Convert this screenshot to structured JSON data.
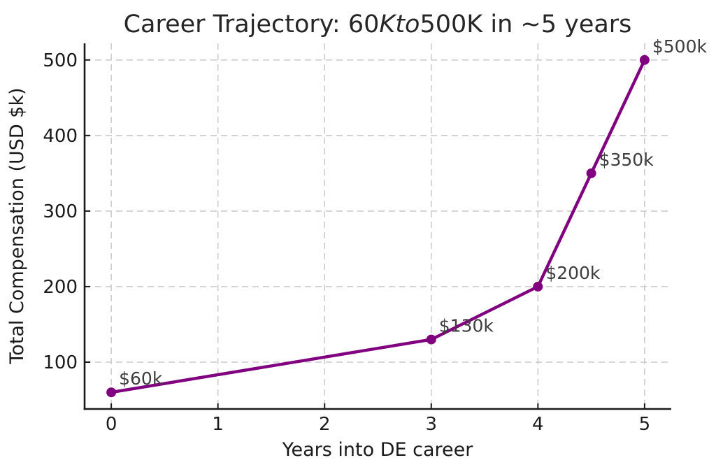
{
  "page": {
    "background": "#ffffff"
  },
  "chart_data": {
    "type": "line",
    "title": {
      "pre": "Career Trajectory: 60",
      "math_italic": "Kto",
      "post": "500K in ~5 years",
      "full_text": "Career Trajectory: 60Kto500K in ~5 years"
    },
    "xlabel": "Years into DE career",
    "ylabel": "Total Compensation (USD $k)",
    "points": [
      {
        "x": 0,
        "y": 60,
        "label": "$60k"
      },
      {
        "x": 3,
        "y": 130,
        "label": "$130k"
      },
      {
        "x": 4,
        "y": 200,
        "label": "$200k"
      },
      {
        "x": 4.5,
        "y": 350,
        "label": "$350k"
      },
      {
        "x": 5,
        "y": 500,
        "label": "$500k"
      }
    ],
    "xticks": [
      "0",
      "1",
      "2",
      "3",
      "4",
      "5"
    ],
    "yticks": [
      "100",
      "200",
      "300",
      "400",
      "500"
    ],
    "xtick_values": [
      0,
      1,
      2,
      3,
      4,
      5
    ],
    "ytick_values": [
      100,
      200,
      300,
      400,
      500
    ],
    "xlim": [
      -0.25,
      5.25
    ],
    "ylim": [
      38,
      522
    ],
    "grid": true,
    "grid_style": "dashed",
    "legend": "none",
    "colors": {
      "line": "#800080",
      "marker": "#800080",
      "annotation_text": "#3d3d3d",
      "axis_text": "#1a1a1a",
      "spine": "#1a1a1a",
      "grid": "#cccccc",
      "background": "#ffffff"
    }
  }
}
